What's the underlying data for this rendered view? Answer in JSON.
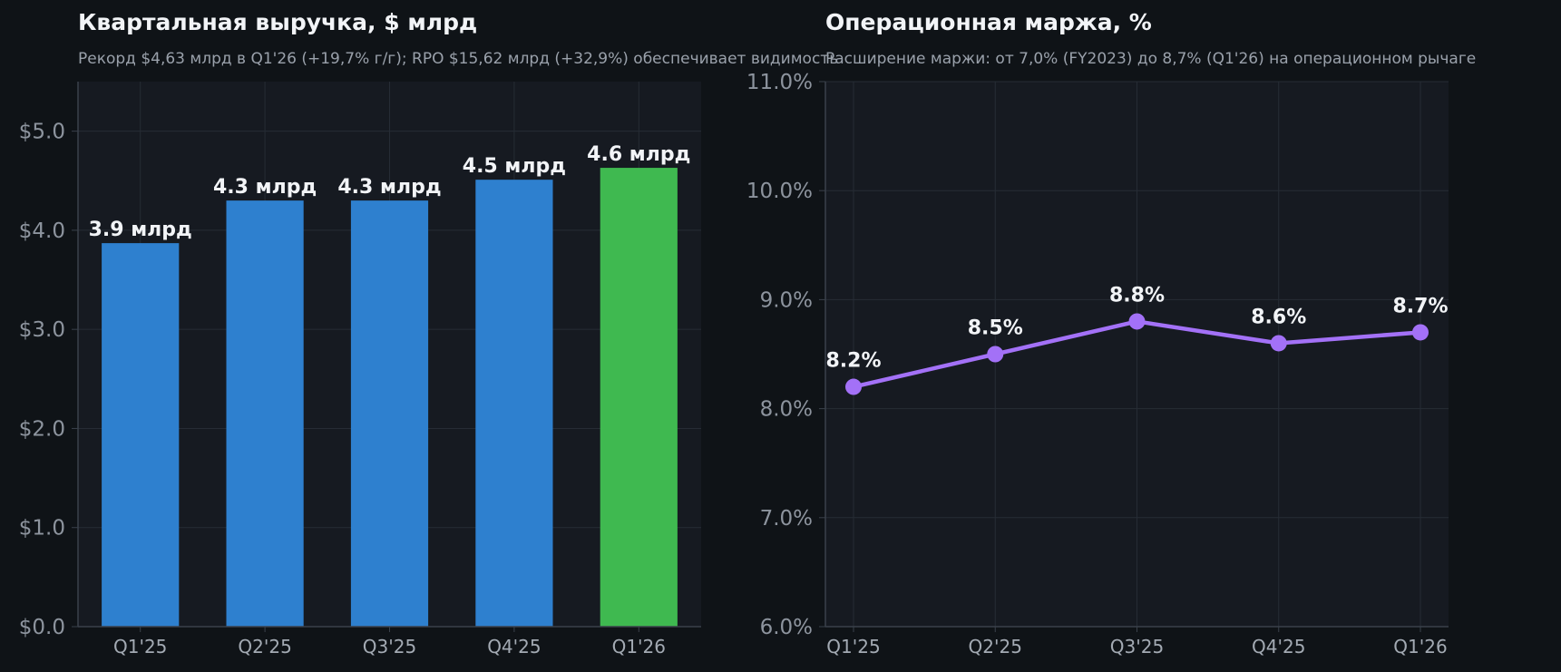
{
  "chart_data": [
    {
      "type": "bar",
      "title": "Квартальная выручка, $ млрд",
      "subtitle": "Рекорд $4,63 млрд в Q1'26 (+19,7% г/г); RPO $15,62 млрд (+32,9%) обеспечивает видимость",
      "categories": [
        "Q1'25",
        "Q2'25",
        "Q3'25",
        "Q4'25",
        "Q1'26"
      ],
      "values": [
        3.87,
        4.3,
        4.3,
        4.51,
        4.63
      ],
      "data_labels": [
        "3.9 млрд",
        "4.3 млрд",
        "4.3 млрд",
        "4.5 млрд",
        "4.6 млрд"
      ],
      "colors": [
        "#2e80cf",
        "#2e80cf",
        "#2e80cf",
        "#2e80cf",
        "#3fb950"
      ],
      "ylim": [
        0,
        5.5
      ],
      "yticks": [
        0,
        1,
        2,
        3,
        4,
        5
      ],
      "ytick_labels": [
        "$0.0",
        "$1.0",
        "$2.0",
        "$3.0",
        "$4.0",
        "$5.0"
      ],
      "grid": true
    },
    {
      "type": "line",
      "title": "Операционная маржа, %",
      "subtitle": "Расширение маржи: от 7,0% (FY2023) до 8,7% (Q1'26) на операционном рычаге",
      "categories": [
        "Q1'25",
        "Q2'25",
        "Q3'25",
        "Q4'25",
        "Q1'26"
      ],
      "values": [
        8.2,
        8.5,
        8.8,
        8.6,
        8.7
      ],
      "data_labels": [
        "8.2%",
        "8.5%",
        "8.8%",
        "8.6%",
        "8.7%"
      ],
      "color": "#a371f7",
      "ylim": [
        6.0,
        11.0
      ],
      "yticks": [
        6,
        7,
        8,
        9,
        10,
        11
      ],
      "ytick_labels": [
        "6.0%",
        "7.0%",
        "8.0%",
        "9.0%",
        "10.0%",
        "11.0%"
      ],
      "grid": true
    }
  ]
}
